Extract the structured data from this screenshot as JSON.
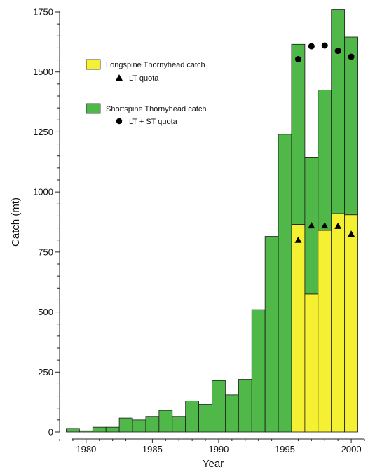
{
  "chart_data": {
    "type": "bar",
    "stacked": true,
    "xlabel": "Year",
    "ylabel": "Catch (mt)",
    "ylim": [
      0,
      1750
    ],
    "xlim": [
      1978,
      2001
    ],
    "xticks": [
      "1980",
      "1985",
      "1990",
      "1995",
      "2000"
    ],
    "yticks": [
      "0",
      "250",
      "500",
      "750",
      "1000",
      "1250",
      "1500",
      "1750"
    ],
    "colors": {
      "longspine": "#f5f032",
      "shortspine": "#4fb848",
      "edge": "#1a1a1a",
      "marker": "#000000"
    },
    "years": [
      1979,
      1980,
      1981,
      1982,
      1983,
      1984,
      1985,
      1986,
      1987,
      1988,
      1989,
      1990,
      1991,
      1992,
      1993,
      1994,
      1995,
      1996,
      1997,
      1998,
      1999,
      2000
    ],
    "series": [
      {
        "name": "Longspine Thornyhead catch",
        "values": [
          0,
          0,
          0,
          0,
          0,
          0,
          0,
          0,
          0,
          0,
          0,
          0,
          0,
          0,
          0,
          0,
          0,
          865,
          575,
          840,
          910,
          905
        ]
      },
      {
        "name": "Shortspine Thornyhead catch",
        "values": [
          15,
          5,
          20,
          20,
          58,
          50,
          65,
          90,
          65,
          130,
          115,
          215,
          155,
          220,
          510,
          815,
          1240,
          750,
          570,
          585,
          850,
          740
        ]
      }
    ],
    "markers": [
      {
        "name": "LT quota",
        "shape": "triangle",
        "points": [
          [
            1996,
            800
          ],
          [
            1997,
            860
          ],
          [
            1998,
            860
          ],
          [
            1999,
            858
          ],
          [
            2000,
            825
          ]
        ]
      },
      {
        "name": "LT + ST quota",
        "shape": "circle",
        "points": [
          [
            1996,
            1553
          ],
          [
            1997,
            1607
          ],
          [
            1998,
            1610
          ],
          [
            1999,
            1588
          ],
          [
            2000,
            1563
          ]
        ]
      }
    ],
    "legend": {
      "position": "upper-left",
      "entries": [
        {
          "label": "Longspine Thornyhead catch",
          "symbol": "box",
          "color": "#f5f032"
        },
        {
          "label": "LT quota",
          "symbol": "triangle"
        },
        {
          "label": "Shortspine Thornyhead catch",
          "symbol": "box",
          "color": "#4fb848"
        },
        {
          "label": "LT + ST quota",
          "symbol": "circle"
        }
      ]
    }
  }
}
